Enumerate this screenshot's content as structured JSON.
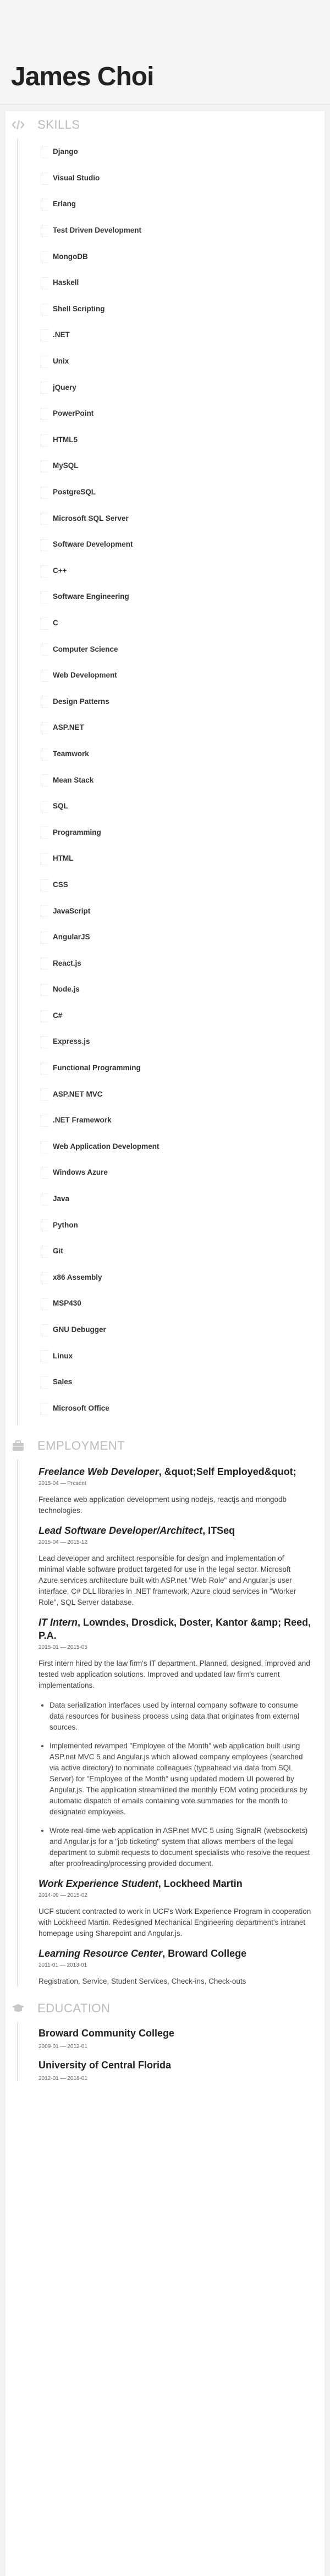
{
  "header": {
    "name": "James Choi"
  },
  "sections": {
    "skills": "SKILLS",
    "employment": "EMPLOYMENT",
    "education": "EDUCATION"
  },
  "skills": [
    "Django",
    "Visual Studio",
    "Erlang",
    "Test Driven Development",
    "MongoDB",
    "Haskell",
    "Shell Scripting",
    ".NET",
    "Unix",
    "jQuery",
    "PowerPoint",
    "HTML5",
    "MySQL",
    "PostgreSQL",
    "Microsoft SQL Server",
    "Software Development",
    "C++",
    "Software Engineering",
    "C",
    "Computer Science",
    "Web Development",
    "Design Patterns",
    "ASP.NET",
    "Teamwork",
    "Mean Stack",
    "SQL",
    "Programming",
    "HTML",
    "CSS",
    "JavaScript",
    "AngularJS",
    "React.js",
    "Node.js",
    "C#",
    "Express.js",
    "Functional Programming",
    "ASP.NET MVC",
    ".NET Framework",
    "Web Application Development",
    "Windows Azure",
    "Java",
    "Python",
    "Git",
    "x86 Assembly",
    "MSP430",
    "GNU Debugger",
    "Linux",
    "Sales",
    "Microsoft Office"
  ],
  "employment": [
    {
      "role": "Freelance Web Developer",
      "company": "&quot;Self Employed&quot;",
      "date": "2015-04 — Present",
      "description": "Freelance web application development using nodejs, reactjs and mongodb technologies.",
      "bullets": []
    },
    {
      "role": "Lead Software Developer/Architect",
      "company": "ITSeq",
      "date": "2015-04 — 2015-12",
      "description": "Lead developer and architect responsible for design and implementation of minimal viable software product targeted for use in the legal sector. Microsoft Azure services architecture built with ASP.net \"Web Role\" and Angular.js user interface, C# DLL libraries in .NET framework, Azure cloud services in \"Worker Role\", SQL Server database.",
      "bullets": []
    },
    {
      "role": "IT Intern",
      "company": "Lowndes, Drosdick, Doster, Kantor &amp; Reed, P.A.",
      "date": "2015-01 — 2015-05",
      "description": "First intern hired by the law firm's IT department. Planned, designed, improved and tested web application solutions. Improved and updated law firm's current implementations.",
      "bullets": [
        "Data serialization interfaces used by internal company software to consume data resources for business process using data that originates from external sources.",
        "Implemented revamped \"Employee of the Month\" web application built using ASP.net MVC 5 and Angular.js which allowed company employees (searched via active directory) to nominate colleagues (typeahead via data from SQL Server) for \"Employee of the Month\" using updated modern UI powered by Angular.js. The application streamlined the monthly EOM voting procedures by automatic dispatch of emails containing vote summaries for the month to designated employees.",
        "Wrote real-time web application in ASP.net MVC 5 using SignalR (websockets) and Angular.js for a \"job ticketing\" system that allows members of the legal department to submit requests to document specialists who resolve the request after proofreading/processing provided document."
      ]
    },
    {
      "role": "Work Experience Student",
      "company": "Lockheed Martin",
      "date": "2014-09 — 2015-02",
      "description": "UCF student contracted to work in UCF's Work Experience Program in cooperation with Lockheed Martin. Redesigned Mechanical Engineering department's intranet homepage using Sharepoint and Angular.js.",
      "bullets": []
    },
    {
      "role": "Learning Resource Center",
      "company": "Broward College",
      "date": "2011-01 — 2013-01",
      "description": "Registration, Service, Student Services, Check-ins, Check-outs",
      "bullets": []
    }
  ],
  "education": [
    {
      "school": "Broward Community College",
      "date": "2009-01 — 2012-01"
    },
    {
      "school": "University of Central Florida",
      "date": "2012-01 — 2016-01"
    }
  ]
}
